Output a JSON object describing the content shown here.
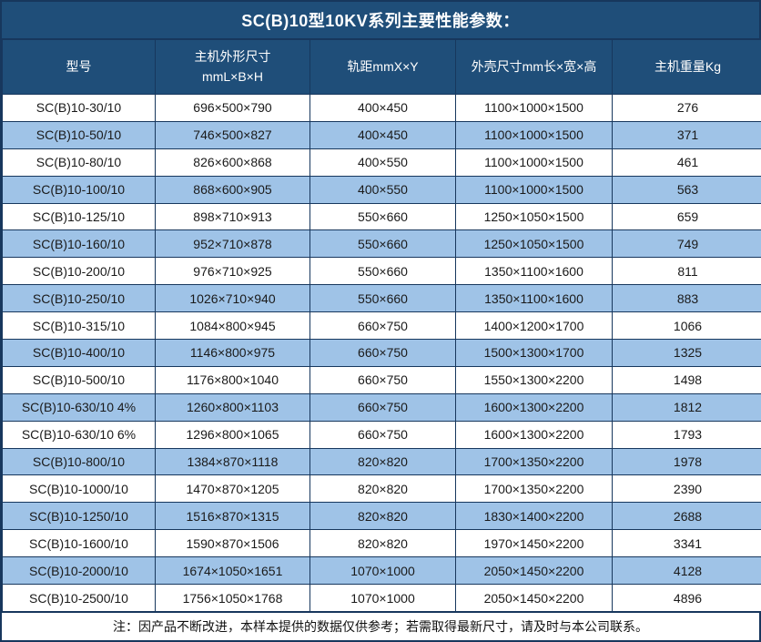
{
  "title": "SC(B)10型10KV系列主要性能参数：",
  "table": {
    "columns": [
      "型号",
      "主机外形尺寸\nmmL×B×H",
      "轨距mmX×Y",
      "外壳尺寸mm长×宽×高",
      "主机重量Kg"
    ],
    "rows": [
      [
        "SC(B)10-30/10",
        "696×500×790",
        "400×450",
        "1100×1000×1500",
        "276"
      ],
      [
        "SC(B)10-50/10",
        "746×500×827",
        "400×450",
        "1100×1000×1500",
        "371"
      ],
      [
        "SC(B)10-80/10",
        "826×600×868",
        "400×550",
        "1100×1000×1500",
        "461"
      ],
      [
        "SC(B)10-100/10",
        "868×600×905",
        "400×550",
        "1100×1000×1500",
        "563"
      ],
      [
        "SC(B)10-125/10",
        "898×710×913",
        "550×660",
        "1250×1050×1500",
        "659"
      ],
      [
        "SC(B)10-160/10",
        "952×710×878",
        "550×660",
        "1250×1050×1500",
        "749"
      ],
      [
        "SC(B)10-200/10",
        "976×710×925",
        "550×660",
        "1350×1100×1600",
        "811"
      ],
      [
        "SC(B)10-250/10",
        "1026×710×940",
        "550×660",
        "1350×1100×1600",
        "883"
      ],
      [
        "SC(B)10-315/10",
        "1084×800×945",
        "660×750",
        "1400×1200×1700",
        "1066"
      ],
      [
        "SC(B)10-400/10",
        "1146×800×975",
        "660×750",
        "1500×1300×1700",
        "1325"
      ],
      [
        "SC(B)10-500/10",
        "1176×800×1040",
        "660×750",
        "1550×1300×2200",
        "1498"
      ],
      [
        "SC(B)10-630/10 4%",
        "1260×800×1103",
        "660×750",
        "1600×1300×2200",
        "1812"
      ],
      [
        "SC(B)10-630/10 6%",
        "1296×800×1065",
        "660×750",
        "1600×1300×2200",
        "1793"
      ],
      [
        "SC(B)10-800/10",
        "1384×870×1118",
        "820×820",
        "1700×1350×2200",
        "1978"
      ],
      [
        "SC(B)10-1000/10",
        "1470×870×1205",
        "820×820",
        "1700×1350×2200",
        "2390"
      ],
      [
        "SC(B)10-1250/10",
        "1516×870×1315",
        "820×820",
        "1830×1400×2200",
        "2688"
      ],
      [
        "SC(B)10-1600/10",
        "1590×870×1506",
        "820×820",
        "1970×1450×2200",
        "3341"
      ],
      [
        "SC(B)10-2000/10",
        "1674×1050×1651",
        "1070×1000",
        "2050×1450×2200",
        "4128"
      ],
      [
        "SC(B)10-2500/10",
        "1756×1050×1768",
        "1070×1000",
        "2050×1450×2200",
        "4896"
      ]
    ]
  },
  "footer_note": "注：因产品不断改进，本样本提供的数据仅供参考；若需取得最新尺寸，请及时与本公司联系。",
  "colors": {
    "header_bg": "#1F4E79",
    "row_stripe": "#9FC3E7",
    "grid_line": "#17375D",
    "header_text": "#FFFFFF",
    "body_text": "#1A1A1A"
  }
}
